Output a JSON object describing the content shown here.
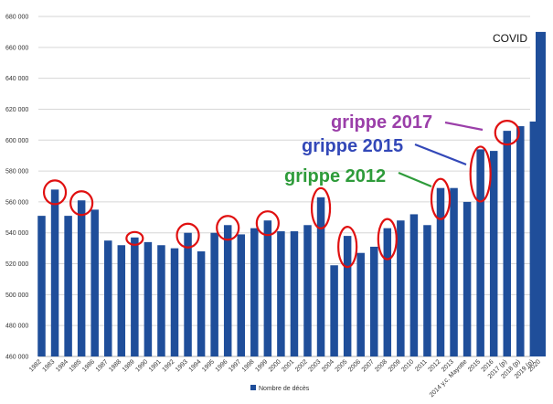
{
  "chart_data": {
    "type": "bar",
    "ylabel_ticks": [
      "460 000",
      "480 000",
      "500 000",
      "520 000",
      "540 000",
      "560 000",
      "580 000",
      "600 000",
      "620 000",
      "640 000",
      "660 000",
      "680 000"
    ],
    "ylim": [
      460000,
      680000
    ],
    "categories": [
      "1982",
      "1983",
      "1984",
      "1985",
      "1986",
      "1987",
      "1988",
      "1989",
      "1990",
      "1991",
      "1992",
      "1993",
      "1994",
      "1995",
      "1996",
      "1997",
      "1998",
      "1999",
      "2000",
      "2001",
      "2002",
      "2003",
      "2004",
      "2005",
      "2006",
      "2007",
      "2008",
      "2009",
      "2010",
      "2011",
      "2012",
      "2013",
      "2014 y.c. Mayotte",
      "2015",
      "2016",
      "2017 (p)",
      "2018 (p)",
      "2019 (p)",
      "2020"
    ],
    "series": [
      {
        "name": "Nombre de décès",
        "color": "#1f4e9a",
        "values": [
          551000,
          568000,
          551000,
          561000,
          555000,
          535000,
          532000,
          537000,
          534000,
          532000,
          530000,
          540000,
          528000,
          540000,
          545000,
          539000,
          543000,
          548000,
          541000,
          541000,
          545000,
          563000,
          519000,
          538000,
          527000,
          531000,
          543000,
          548000,
          552000,
          545000,
          569000,
          569000,
          560000,
          594000,
          593000,
          606000,
          609000,
          612000,
          670000
        ]
      }
    ],
    "legend": {
      "position": "bottom-center"
    },
    "circled_categories": [
      "1983",
      "1985",
      "1989",
      "1993",
      "1996",
      "1999",
      "2003",
      "2005",
      "2008",
      "2012",
      "2015",
      "2017 (p)"
    ],
    "annotations": [
      {
        "text": "grippe 2017",
        "color": "#9b3fa9"
      },
      {
        "text": "grippe 2015",
        "color": "#3348b8"
      },
      {
        "text": "grippe 2012",
        "color": "#2e9b3a"
      },
      {
        "text": "COVID",
        "color": "#111111"
      }
    ]
  }
}
